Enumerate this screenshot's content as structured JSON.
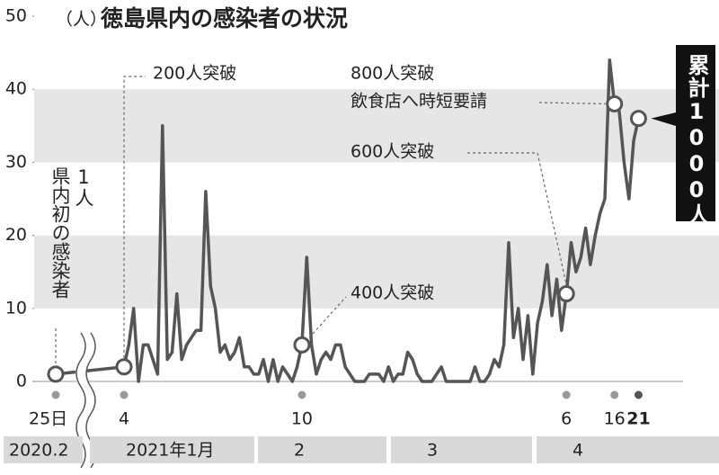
{
  "chart_data": {
    "type": "line",
    "title": "徳島県内の感染者の状況",
    "unit_label": "（人）",
    "ylim": [
      0,
      50
    ],
    "yticks": [
      0,
      10,
      20,
      30,
      40,
      50
    ],
    "bands": [
      [
        10,
        20
      ],
      [
        30,
        40
      ]
    ],
    "color": "#555555",
    "x": [
      "2020-02-25",
      "2021-01-04",
      "2021-01-05",
      "2021-01-06",
      "2021-01-07",
      "2021-01-08",
      "2021-01-09",
      "2021-01-10",
      "2021-01-11",
      "2021-01-12",
      "2021-01-13",
      "2021-01-14",
      "2021-01-15",
      "2021-01-16",
      "2021-01-17",
      "2021-01-18",
      "2021-01-19",
      "2021-01-20",
      "2021-01-21",
      "2021-01-22",
      "2021-01-23",
      "2021-01-24",
      "2021-01-25",
      "2021-01-26",
      "2021-01-27",
      "2021-01-28",
      "2021-01-29",
      "2021-01-30",
      "2021-01-31",
      "2021-02-01",
      "2021-02-02",
      "2021-02-03",
      "2021-02-04",
      "2021-02-05",
      "2021-02-06",
      "2021-02-07",
      "2021-02-08",
      "2021-02-09",
      "2021-02-10",
      "2021-02-11",
      "2021-02-12",
      "2021-02-13",
      "2021-02-14",
      "2021-02-15",
      "2021-02-16",
      "2021-02-17",
      "2021-02-18",
      "2021-02-19",
      "2021-02-20",
      "2021-02-21",
      "2021-02-22",
      "2021-02-23",
      "2021-02-24",
      "2021-02-25",
      "2021-02-26",
      "2021-02-27",
      "2021-02-28",
      "2021-03-01",
      "2021-03-02",
      "2021-03-03",
      "2021-03-04",
      "2021-03-05",
      "2021-03-06",
      "2021-03-07",
      "2021-03-08",
      "2021-03-09",
      "2021-03-10",
      "2021-03-11",
      "2021-03-12",
      "2021-03-13",
      "2021-03-14",
      "2021-03-15",
      "2021-03-16",
      "2021-03-17",
      "2021-03-18",
      "2021-03-19",
      "2021-03-20",
      "2021-03-21",
      "2021-03-22",
      "2021-03-23",
      "2021-03-24",
      "2021-03-25",
      "2021-03-26",
      "2021-03-27",
      "2021-03-28",
      "2021-03-29",
      "2021-03-30",
      "2021-03-31",
      "2021-04-01",
      "2021-04-02",
      "2021-04-03",
      "2021-04-04",
      "2021-04-05",
      "2021-04-06",
      "2021-04-07",
      "2021-04-08",
      "2021-04-09",
      "2021-04-10",
      "2021-04-11",
      "2021-04-12",
      "2021-04-13",
      "2021-04-14",
      "2021-04-15",
      "2021-04-16",
      "2021-04-17",
      "2021-04-18",
      "2021-04-19",
      "2021-04-20",
      "2021-04-21"
    ],
    "values": [
      1,
      2,
      5,
      10,
      0,
      5,
      5,
      3,
      1,
      35,
      3,
      4,
      12,
      3,
      5,
      6,
      7,
      7,
      26,
      13,
      10,
      4,
      5,
      3,
      4,
      6,
      2,
      2,
      1,
      1,
      3,
      0,
      3,
      0,
      2,
      1,
      0,
      2,
      5,
      17,
      5,
      1,
      3,
      4,
      3,
      5,
      5,
      2,
      1,
      0,
      0,
      0,
      1,
      1,
      1,
      0,
      2,
      0,
      1,
      1,
      4,
      3,
      1,
      0,
      0,
      0,
      1,
      2,
      0,
      0,
      0,
      0,
      0,
      0,
      2,
      0,
      0,
      1,
      3,
      2,
      5,
      19,
      6,
      10,
      3,
      9,
      1,
      8,
      11,
      16,
      9,
      14,
      7,
      12,
      19,
      15,
      17,
      21,
      16,
      20,
      23,
      25,
      44,
      38,
      37,
      30,
      25,
      33,
      36
    ],
    "annotations": [
      {
        "date": "2020-02-25",
        "lines": [
          "1人",
          "県内初の感染者"
        ]
      },
      {
        "date": "2021-01-04",
        "lines": [
          "200人突破"
        ]
      },
      {
        "date": "2021-02-10",
        "lines": [
          "400人突破"
        ]
      },
      {
        "date": "2021-04-06",
        "lines": [
          "600人突破"
        ]
      },
      {
        "date": "2021-04-16",
        "lines": [
          "800人突破",
          "飲食店へ時短要請"
        ]
      },
      {
        "date": "2021-04-21",
        "lines": [
          "累計1000人"
        ]
      }
    ],
    "date_labels": [
      {
        "date": "2020-02-25",
        "label": "25日"
      },
      {
        "date": "2021-01-04",
        "label": "4"
      },
      {
        "date": "2021-02-10",
        "label": "10"
      },
      {
        "date": "2021-04-06",
        "label": "6"
      },
      {
        "date": "2021-04-16",
        "label": "16"
      },
      {
        "date": "2021-04-21",
        "label": "21"
      }
    ],
    "months": [
      "2020.2",
      "2021年1月",
      "2",
      "3",
      "4"
    ]
  }
}
